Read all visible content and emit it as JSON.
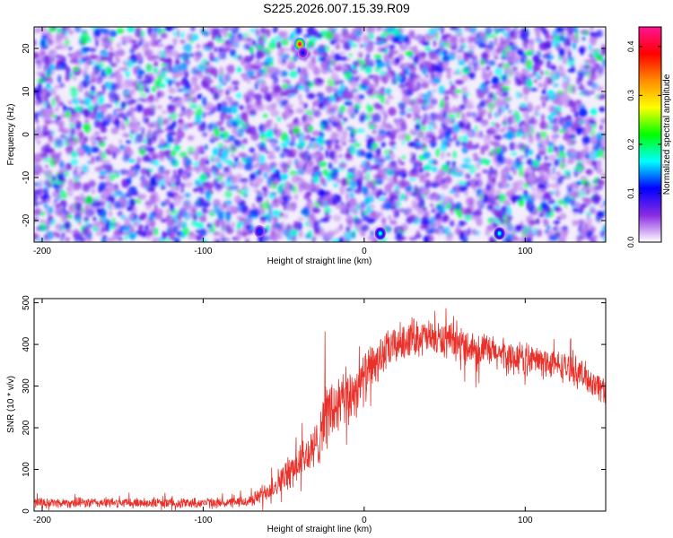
{
  "title": "S225.2026.007.15.39.R09",
  "chart_data": [
    {
      "type": "heatmap",
      "xlabel": "Height of straight line (km)",
      "ylabel": "Frequency (Hz)",
      "xlim": [
        -205,
        150
      ],
      "ylim": [
        -25,
        25
      ],
      "x_ticks": [
        -200,
        -100,
        0,
        100
      ],
      "y_ticks": [
        -20,
        -10,
        0,
        10,
        20
      ],
      "colorbar": {
        "label": "Normalized spectral amplitude",
        "range": [
          0.0,
          0.44
        ],
        "ticks": [
          0.0,
          0.1,
          0.2,
          0.3,
          0.4
        ],
        "colors": [
          "#ffffff",
          "#8a2be2",
          "#0000ff",
          "#00ffff",
          "#00ff00",
          "#ffff00",
          "#ff8c00",
          "#ff0000",
          "#ff1493"
        ]
      },
      "hotspots": [
        {
          "x": -40,
          "y": 21,
          "value": 0.42
        },
        {
          "x": 10,
          "y": -23,
          "value": 0.17
        },
        {
          "x": 84,
          "y": -23,
          "value": 0.17
        },
        {
          "x": -65,
          "y": -22.5,
          "value": 0.12
        },
        {
          "x": -38,
          "y": 19,
          "value": 0.1
        }
      ]
    },
    {
      "type": "line",
      "xlabel": "Height of straight line (km)",
      "ylabel": "SNR (10 * v/v)",
      "xlim": [
        -205,
        150
      ],
      "ylim": [
        0,
        510
      ],
      "x_ticks": [
        -200,
        -100,
        0,
        100
      ],
      "y_ticks": [
        0,
        100,
        200,
        300,
        400,
        500
      ],
      "color": "#e8312a",
      "envelope_x": [
        -205,
        -80,
        -70,
        -60,
        -50,
        -40,
        -30,
        -25,
        -20,
        -10,
        0,
        10,
        20,
        30,
        50,
        70,
        90,
        110,
        130,
        150
      ],
      "envelope_mean": [
        20,
        20,
        25,
        50,
        80,
        120,
        150,
        230,
        240,
        270,
        320,
        370,
        400,
        420,
        410,
        390,
        370,
        360,
        340,
        290
      ],
      "envelope_spread": [
        12,
        12,
        15,
        25,
        35,
        45,
        60,
        80,
        80,
        70,
        60,
        50,
        45,
        45,
        40,
        40,
        40,
        35,
        35,
        35
      ]
    }
  ]
}
